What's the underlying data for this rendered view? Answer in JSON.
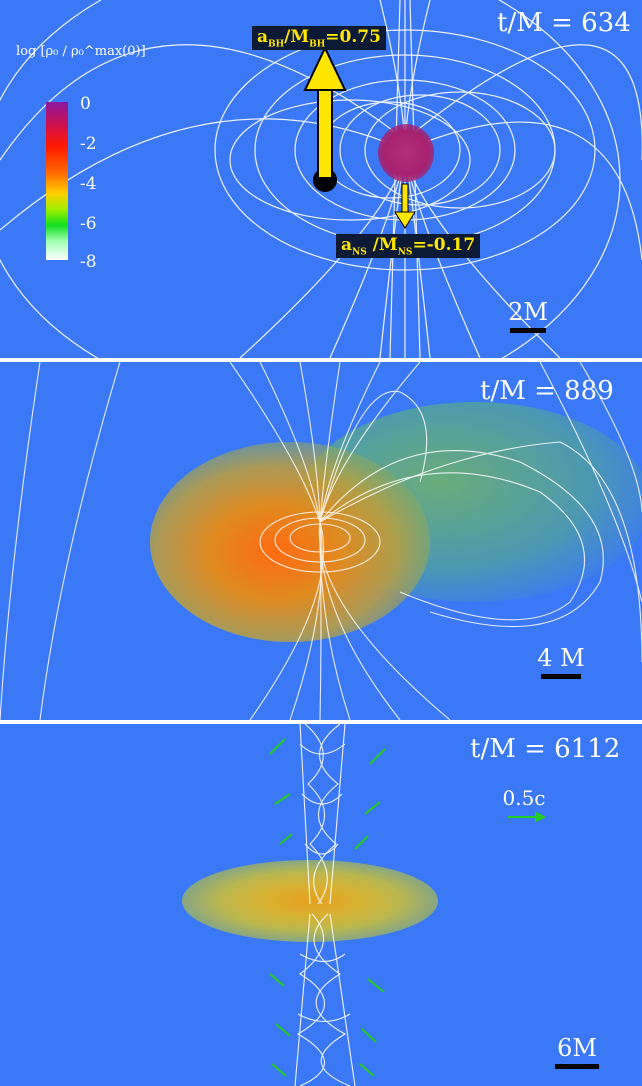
{
  "panels": [
    {
      "time_label": "t/M = 634",
      "scale_label": "2M",
      "colorbar": {
        "label": "log [ρ₀ / ρ₀^max(0)]",
        "ticks": [
          "0",
          "-2",
          "-4",
          "-6",
          "-8"
        ]
      },
      "bh_spin_label": "a",
      "bh_spin_sub": "BH",
      "bh_spin_mid": "/M",
      "bh_spin_sub2": "BH",
      "bh_spin_value": "=0.75",
      "ns_spin_label": "a",
      "ns_spin_sub": "NS",
      "ns_spin_mid": " /M",
      "ns_spin_sub2": "NS",
      "ns_spin_value": "=-0.17"
    },
    {
      "time_label": "t/M = 889",
      "scale_label": "4 M"
    },
    {
      "time_label": "t/M = 6112",
      "scale_label": "6M",
      "velocity_label": "0.5c"
    }
  ],
  "colors": {
    "background": "#3b78f5",
    "field_lines": "#ffffff",
    "arrow": "#ffe600",
    "velocity_arrow": "#22dd22"
  }
}
